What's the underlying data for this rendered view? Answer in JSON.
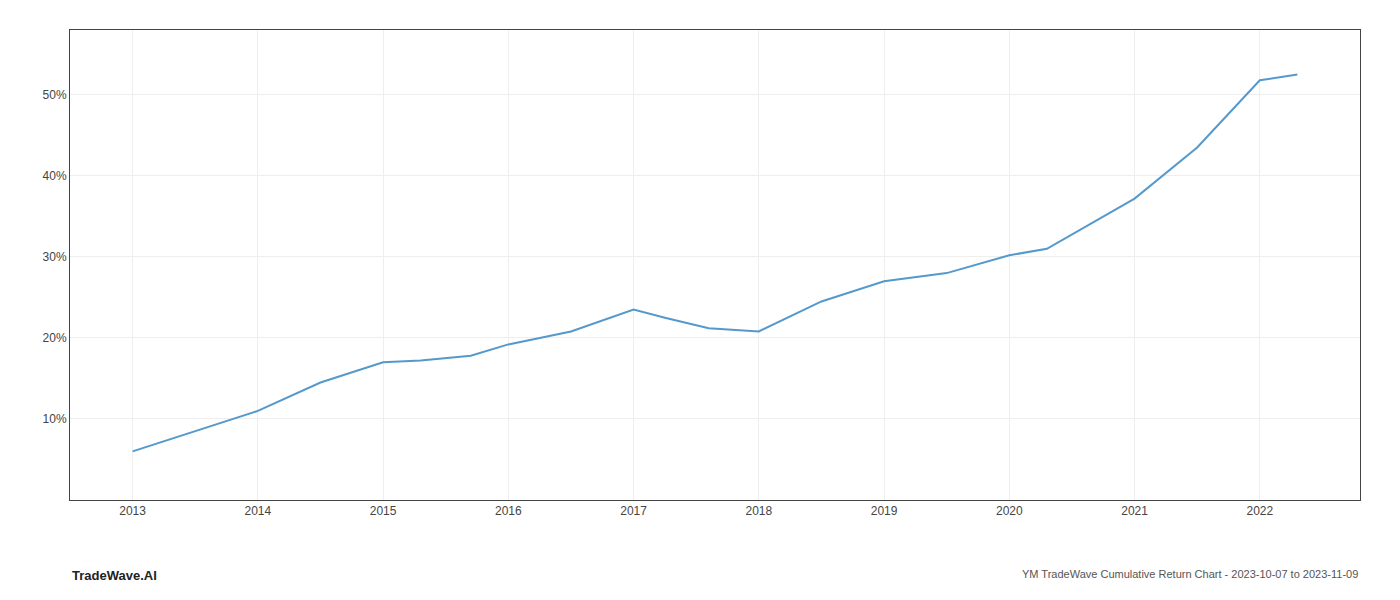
{
  "chart_data": {
    "type": "line",
    "x": [
      2013,
      2013.5,
      2014,
      2014.5,
      2015,
      2015.3,
      2015.7,
      2016,
      2016.5,
      2017,
      2017.25,
      2017.6,
      2018,
      2018.5,
      2019,
      2019.5,
      2020,
      2020.3,
      2021,
      2021.5,
      2022,
      2022.3
    ],
    "values": [
      6.0,
      8.5,
      11.0,
      14.5,
      17.0,
      17.2,
      17.8,
      19.2,
      20.8,
      23.5,
      22.5,
      21.2,
      20.8,
      24.5,
      27.0,
      28.0,
      30.2,
      31.0,
      37.2,
      43.5,
      51.8,
      52.5
    ],
    "color": "#5599cc",
    "xlim": [
      2012.5,
      2022.8
    ],
    "ylim": [
      0,
      58
    ],
    "xticks": [
      2013,
      2014,
      2015,
      2016,
      2017,
      2018,
      2019,
      2020,
      2021,
      2022
    ],
    "yticks": [
      {
        "value": 10,
        "label": "10%"
      },
      {
        "value": 20,
        "label": "20%"
      },
      {
        "value": 30,
        "label": "30%"
      },
      {
        "value": 40,
        "label": "40%"
      },
      {
        "value": 50,
        "label": "50%"
      }
    ],
    "grid": true,
    "annotations": [
      {
        "text": "TradeWave.AI"
      },
      {
        "text": "YM TradeWave Cumulative Return Chart - 2023-10-07 to 2023-11-09"
      }
    ]
  }
}
